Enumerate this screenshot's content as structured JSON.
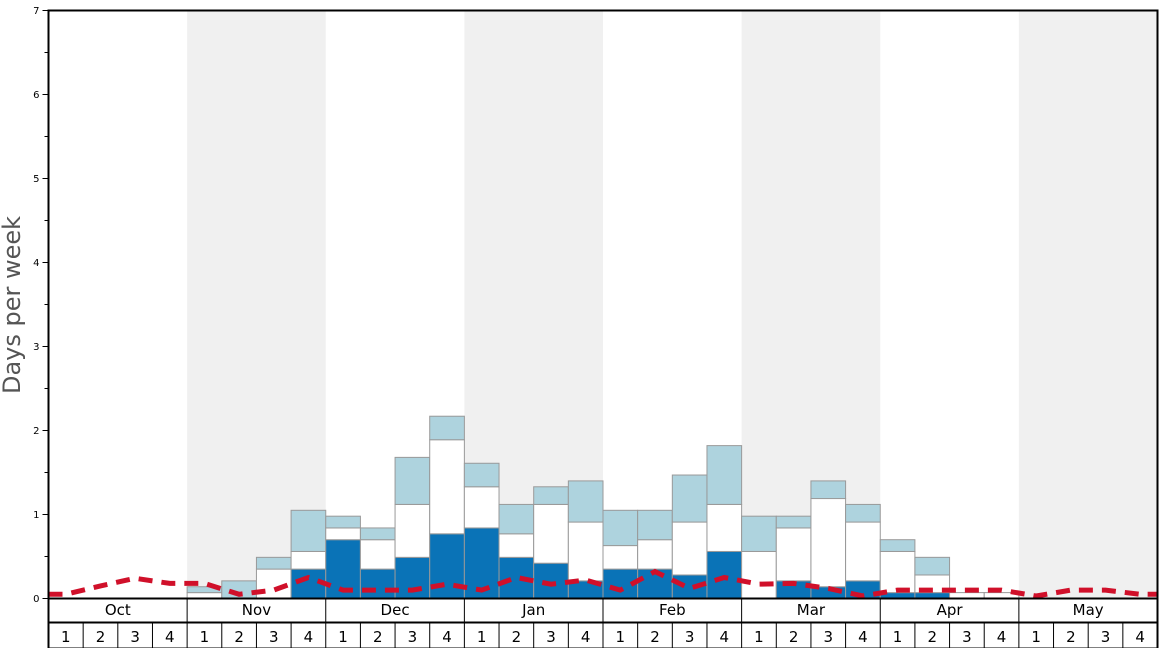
{
  "chart_data": {
    "type": "bar",
    "ylabel": "Days per week",
    "ylim": [
      0,
      7
    ],
    "y_ticks": [
      "0",
      "1",
      "2",
      "3",
      "4",
      "5",
      "6",
      "7"
    ],
    "months": [
      "Oct",
      "Nov",
      "Dec",
      "Jan",
      "Feb",
      "Mar",
      "Apr",
      "May"
    ],
    "week_labels": [
      "1",
      "2",
      "3",
      "4"
    ],
    "series": [
      {
        "color": "#0a73b7",
        "values": [
          0,
          0,
          0,
          0,
          0,
          0,
          0,
          0.35,
          0.7,
          0.35,
          0.49,
          0.77,
          0.84,
          0.49,
          0.42,
          0.21,
          0.35,
          0.35,
          0.28,
          0.56,
          0,
          0.21,
          0.14,
          0.21,
          0.07,
          0.07,
          0,
          0,
          0,
          0,
          0,
          0
        ]
      },
      {
        "color": "#ffffff",
        "values": [
          0,
          0,
          0,
          0,
          0.07,
          0,
          0.35,
          0.21,
          0.14,
          0.35,
          0.63,
          1.12,
          0.49,
          0.28,
          0.7,
          0.7,
          0.28,
          0.35,
          0.63,
          0.56,
          0.56,
          0.63,
          1.05,
          0.7,
          0.49,
          0.21,
          0.07,
          0.07,
          0,
          0,
          0,
          0
        ]
      },
      {
        "color": "#aed3de",
        "values": [
          0,
          0,
          0,
          0,
          0.07,
          0.21,
          0.14,
          0.49,
          0.14,
          0.14,
          0.56,
          0.28,
          0.28,
          0.35,
          0.21,
          0.49,
          0.42,
          0.35,
          0.56,
          0.7,
          0.42,
          0.14,
          0.21,
          0.21,
          0.14,
          0.21,
          0,
          0,
          0,
          0,
          0,
          0
        ]
      }
    ],
    "line": {
      "style": "dashed",
      "color": "#d0102a",
      "values": [
        0.05,
        0.15,
        0.24,
        0.18,
        0.18,
        0.05,
        0.1,
        0.25,
        0.1,
        0.1,
        0.1,
        0.17,
        0.1,
        0.25,
        0.17,
        0.22,
        0.1,
        0.32,
        0.12,
        0.25,
        0.17,
        0.18,
        0.12,
        0.03,
        0.1,
        0.1,
        0.1,
        0.1,
        0.03,
        0.1,
        0.1,
        0.05
      ]
    },
    "grid": false,
    "alternating_month_shading": true
  }
}
